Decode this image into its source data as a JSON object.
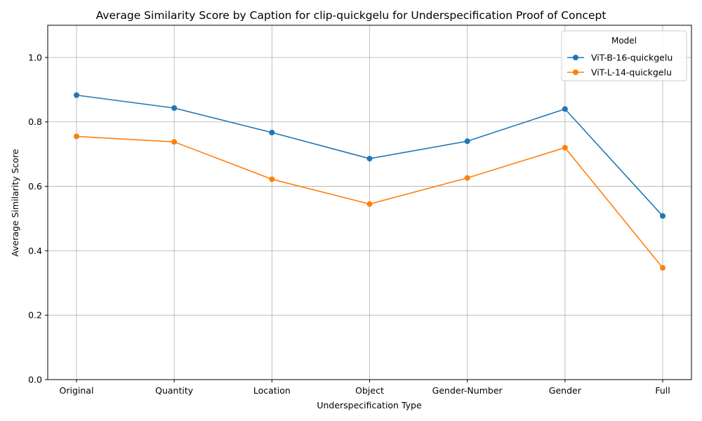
{
  "chart_data": {
    "type": "line",
    "title": "Average Similarity Score by Caption for clip-quickgelu for Underspecification Proof of Concept",
    "xlabel": "Underspecification Type",
    "ylabel": "Average Similarity Score",
    "categories": [
      "Original",
      "Quantity",
      "Location",
      "Object",
      "Gender-Number",
      "Gender",
      "Full"
    ],
    "ylim": [
      0.0,
      1.1
    ],
    "yticks": [
      "0.0",
      "0.2",
      "0.4",
      "0.6",
      "0.8",
      "1.0"
    ],
    "grid": true,
    "legend": {
      "title": "Model",
      "placement": "top-right"
    },
    "series": [
      {
        "name": "ViT-B-16-quickgelu",
        "color": "#1f77b4",
        "values": [
          0.883,
          0.843,
          0.767,
          0.686,
          0.74,
          0.84,
          0.508
        ]
      },
      {
        "name": "ViT-L-14-quickgelu",
        "color": "#ff7f0e",
        "values": [
          0.755,
          0.738,
          0.622,
          0.545,
          0.626,
          0.72,
          0.347
        ]
      }
    ]
  }
}
